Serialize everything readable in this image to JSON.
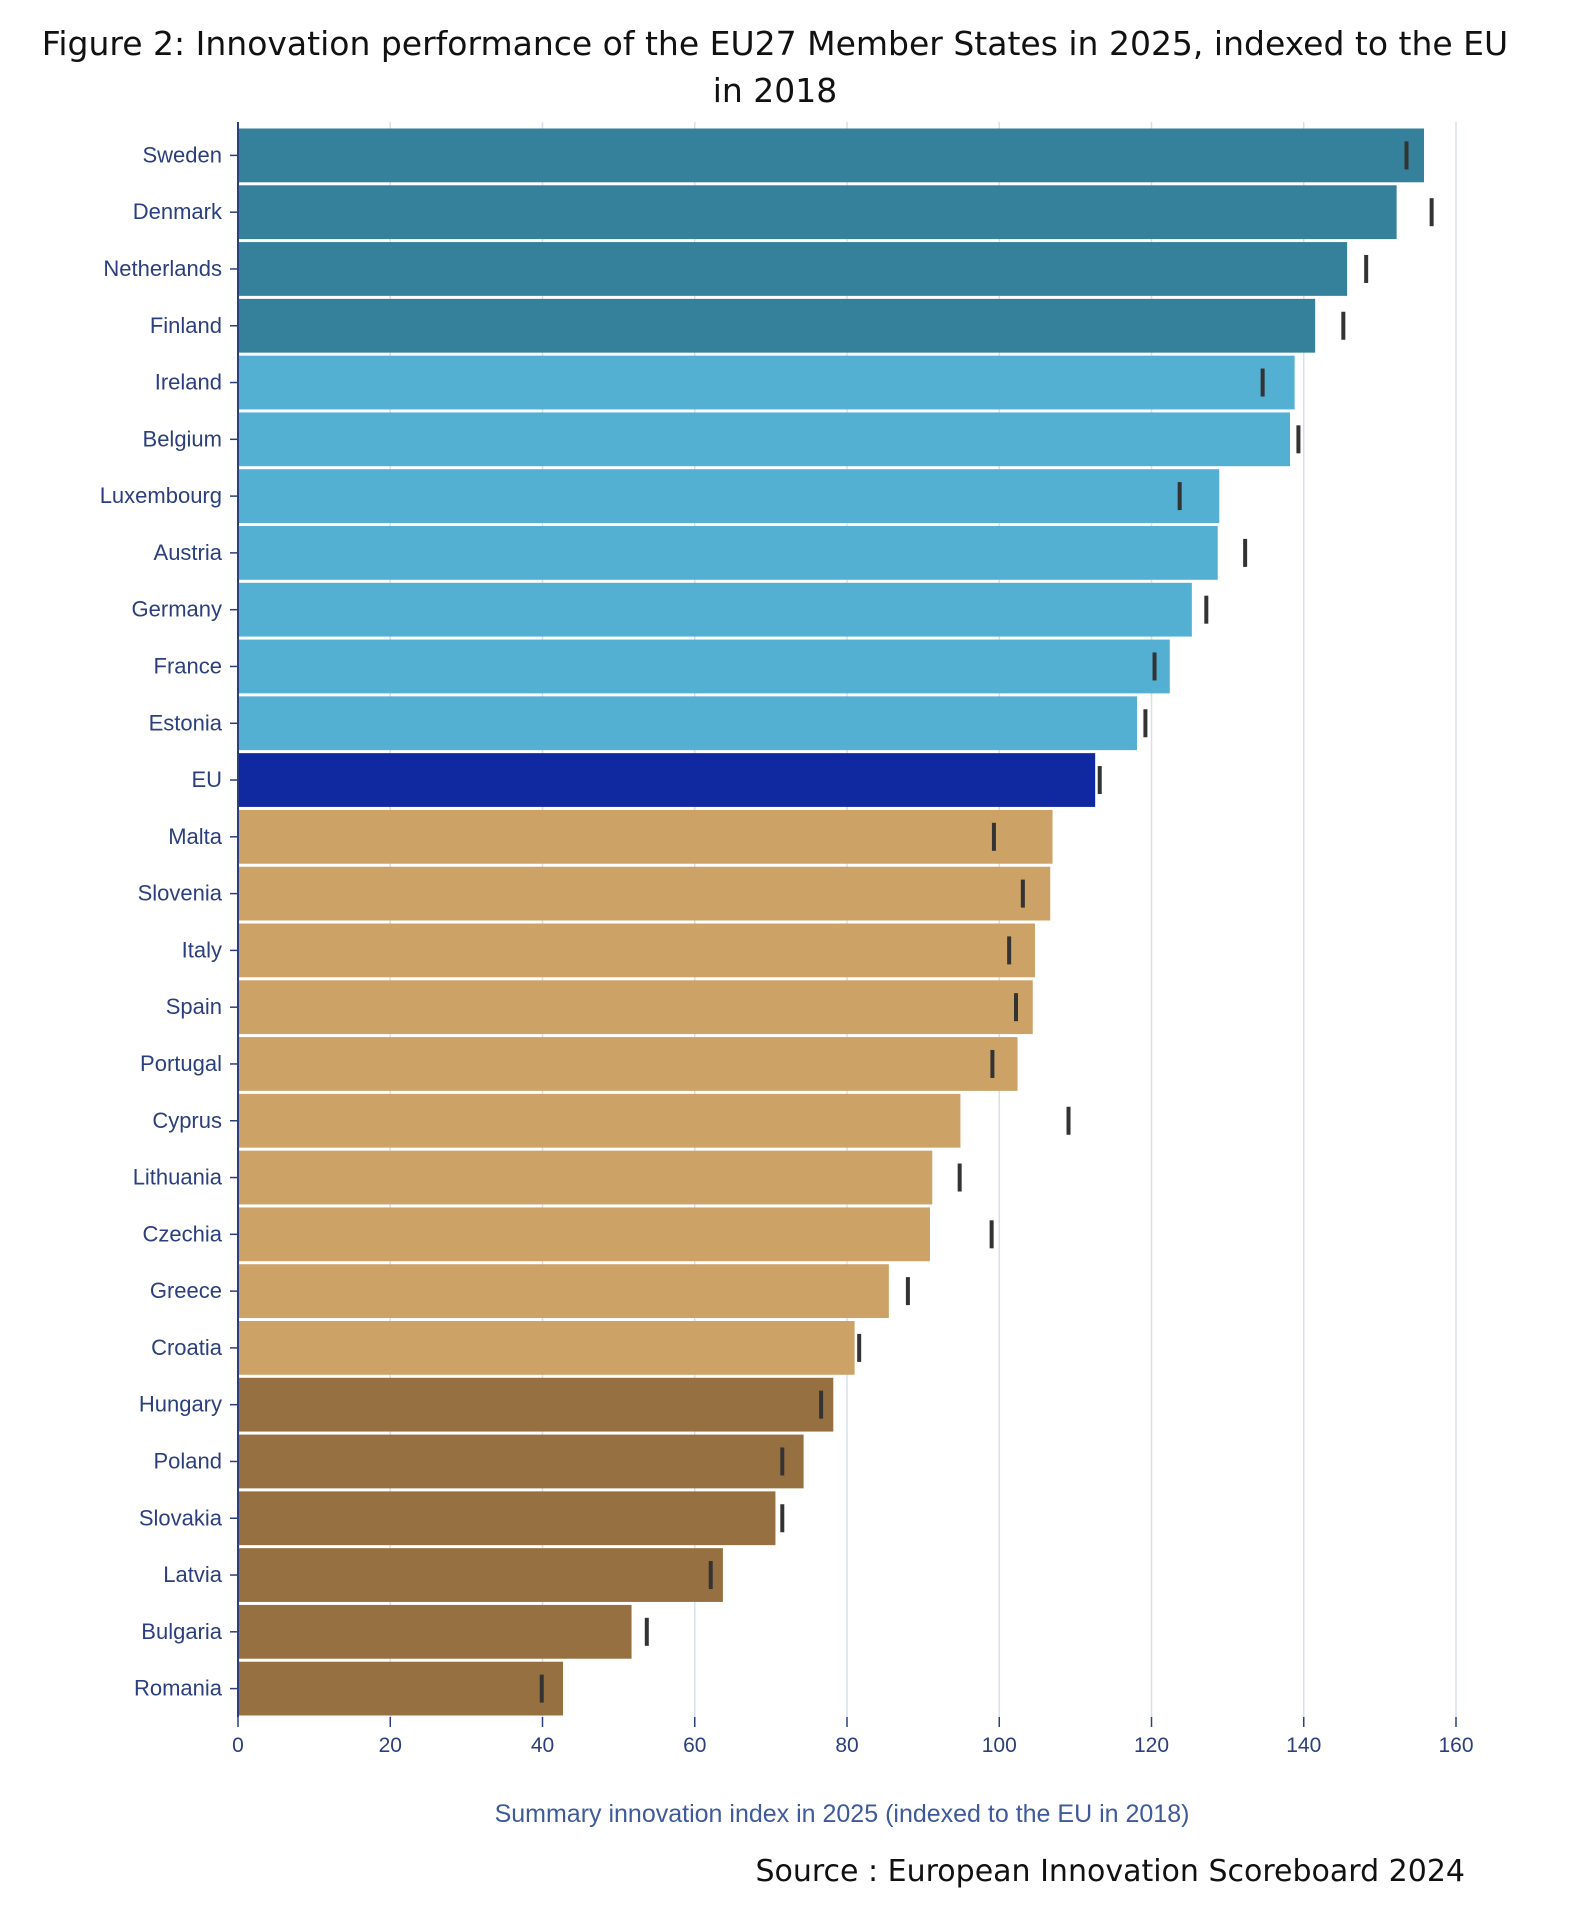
{
  "title": "Figure 2: Innovation performance of the EU27 Member States in 2025, indexed to the EU in 2018",
  "source": "Source : European Innovation Scoreboard 2024",
  "chart_data": {
    "type": "bar",
    "orientation": "horizontal",
    "xlabel": "Summary innovation index in 2025 (indexed to the EU in 2018)",
    "xlim": [
      0,
      160
    ],
    "xticks": [
      0,
      20,
      40,
      60,
      80,
      100,
      120,
      140,
      160
    ],
    "grid": "vertical",
    "categories": [
      "Sweden",
      "Denmark",
      "Netherlands",
      "Finland",
      "Ireland",
      "Belgium",
      "Luxembourg",
      "Austria",
      "Germany",
      "France",
      "Estonia",
      "EU",
      "Malta",
      "Slovenia",
      "Italy",
      "Spain",
      "Portugal",
      "Cyprus",
      "Lithuania",
      "Czechia",
      "Greece",
      "Croatia",
      "Hungary",
      "Poland",
      "Slovakia",
      "Latvia",
      "Bulgaria",
      "Romania"
    ],
    "values": [
      155.8,
      152.2,
      145.7,
      141.5,
      138.8,
      138.2,
      128.9,
      128.7,
      125.3,
      122.4,
      118.1,
      112.6,
      107.0,
      106.7,
      104.7,
      104.4,
      102.4,
      94.9,
      91.2,
      90.9,
      85.5,
      81.0,
      78.2,
      74.3,
      70.6,
      63.7,
      51.7,
      42.7
    ],
    "markers": [
      153.5,
      156.8,
      148.2,
      145.2,
      134.6,
      139.3,
      123.7,
      132.3,
      127.2,
      120.4,
      119.2,
      113.2,
      99.3,
      103.1,
      101.3,
      102.2,
      99.1,
      109.1,
      94.8,
      99.0,
      88.0,
      81.6,
      76.6,
      71.5,
      71.5,
      62.1,
      53.7,
      39.9
    ],
    "groups": [
      "leader",
      "leader",
      "leader",
      "leader",
      "strong",
      "strong",
      "strong",
      "strong",
      "strong",
      "strong",
      "strong",
      "eu",
      "moderate",
      "moderate",
      "moderate",
      "moderate",
      "moderate",
      "moderate",
      "moderate",
      "moderate",
      "moderate",
      "moderate",
      "emerging",
      "emerging",
      "emerging",
      "emerging",
      "emerging",
      "emerging"
    ],
    "colors": {
      "leader": "#35809a",
      "strong": "#54b0d3",
      "eu": "#1129a0",
      "moderate": "#cda267",
      "emerging": "#977042",
      "marker": "#333333",
      "grid": "#d8dfeb",
      "axis": "#2b3f7e"
    }
  }
}
